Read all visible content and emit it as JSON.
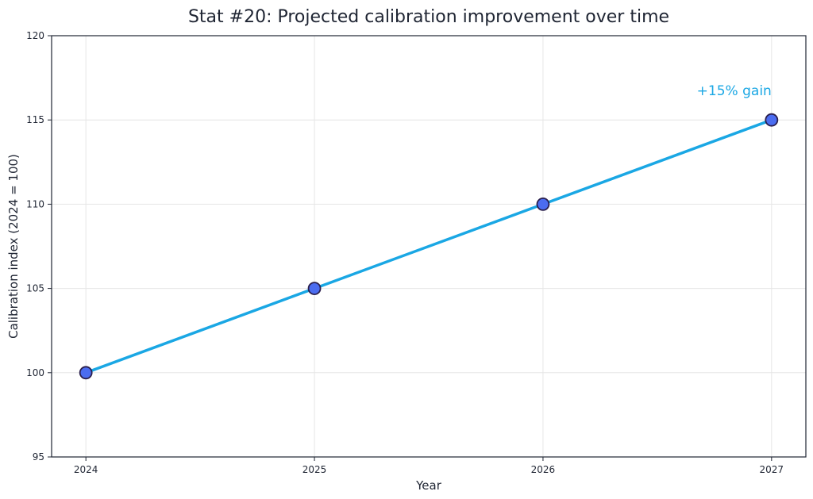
{
  "chart_data": {
    "type": "line",
    "title": "Stat #20: Projected calibration improvement over time",
    "xlabel": "Year",
    "ylabel": "Calibration index (2024 = 100)",
    "x": [
      "2024",
      "2025",
      "2026",
      "2027"
    ],
    "series": [
      {
        "values": [
          100,
          105,
          110,
          115
        ]
      }
    ],
    "xlim": [
      2023.85,
      2027.15
    ],
    "ylim": [
      95,
      120
    ],
    "yticks": [
      "95",
      "100",
      "105",
      "110",
      "115",
      "120"
    ],
    "grid": true,
    "annotations": [
      {
        "text": "+15% gain",
        "x": "2027",
        "y": 116.7
      }
    ],
    "colors": {
      "line": "#1aa7e4",
      "marker_fill": "#4b6cf0",
      "marker_edge": "#2a1f4d",
      "annotation": "#1aa7e4"
    }
  }
}
